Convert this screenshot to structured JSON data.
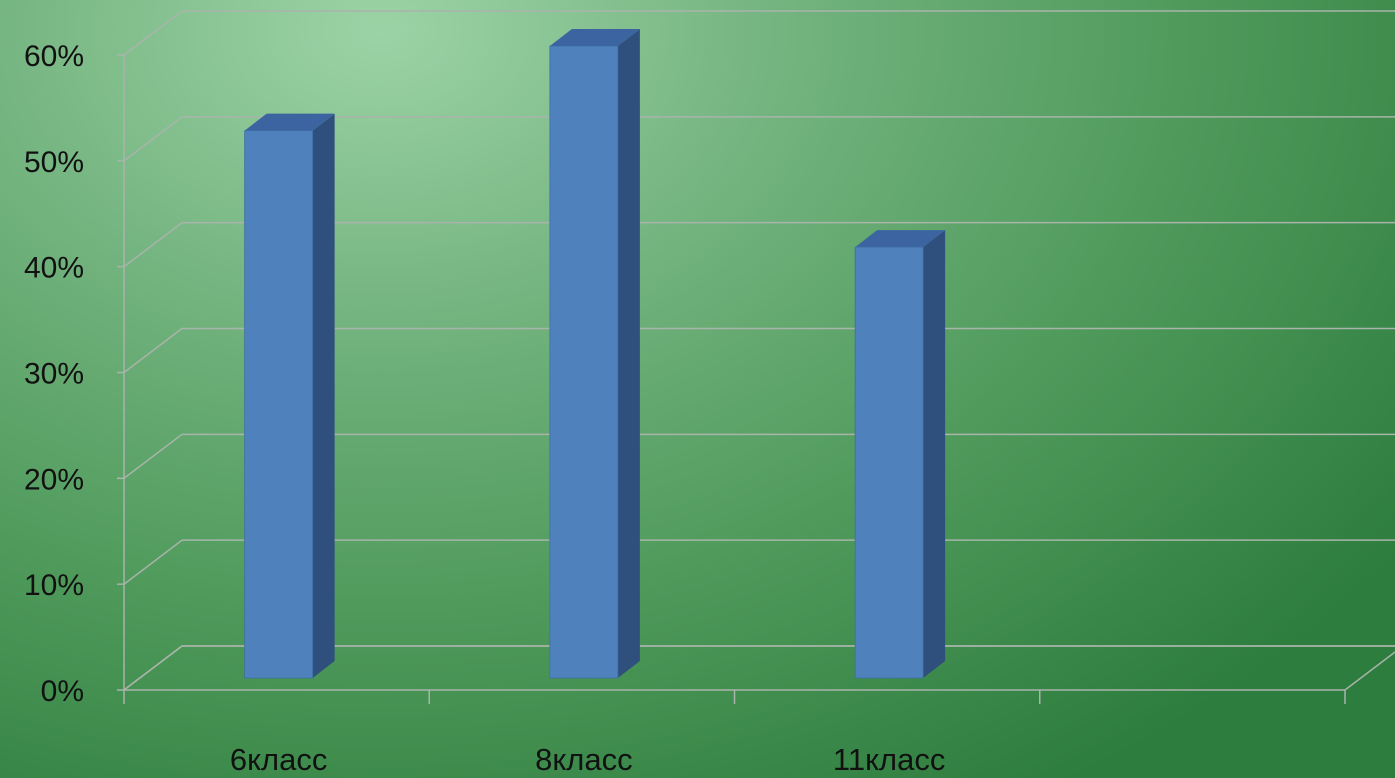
{
  "chart_data": {
    "type": "bar",
    "style": "3d-column",
    "categories": [
      "6класс",
      "8класс",
      "11класс",
      ""
    ],
    "values": [
      52,
      60,
      41,
      null
    ],
    "ylim": [
      0,
      60
    ],
    "yticks": [
      "0%",
      "10%",
      "20%",
      "30%",
      "40%",
      "50%",
      "60%"
    ],
    "grid": true,
    "legend": "none",
    "colors": {
      "bar_front": "#4f81bd",
      "bar_side": "#2f4f7d",
      "bar_top": "#3c64a0",
      "grid": "#a9b4ab"
    }
  }
}
